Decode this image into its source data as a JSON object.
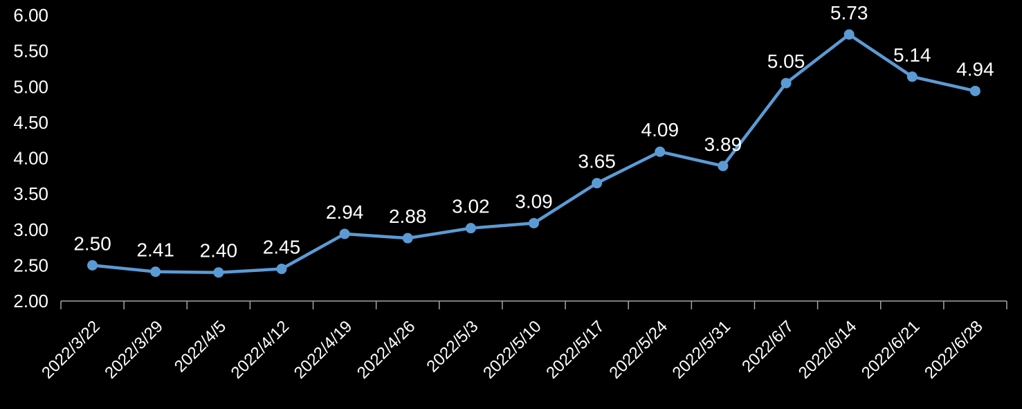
{
  "chart_data": {
    "type": "line",
    "title": "",
    "xlabel": "",
    "ylabel": "",
    "categories": [
      "2022/3/22",
      "2022/3/29",
      "2022/4/5",
      "2022/4/12",
      "2022/4/19",
      "2022/4/26",
      "2022/5/3",
      "2022/5/10",
      "2022/5/17",
      "2022/5/24",
      "2022/5/31",
      "2022/6/7",
      "2022/6/14",
      "2022/6/21",
      "2022/6/28"
    ],
    "values": [
      2.5,
      2.41,
      2.4,
      2.45,
      2.94,
      2.88,
      3.02,
      3.09,
      3.65,
      4.09,
      3.89,
      5.05,
      5.73,
      5.14,
      4.94
    ],
    "value_labels": [
      "2.50",
      "2.41",
      "2.40",
      "2.45",
      "2.94",
      "2.88",
      "3.02",
      "3.09",
      "3.65",
      "4.09",
      "3.89",
      "5.05",
      "5.73",
      "5.14",
      "4.94"
    ],
    "ylim": [
      2.0,
      6.0
    ],
    "ytick_step": 0.5,
    "ytick_labels": [
      "2.00",
      "2.50",
      "3.00",
      "3.50",
      "4.00",
      "4.50",
      "5.00",
      "5.50",
      "6.00"
    ],
    "grid": "off",
    "legend": "none",
    "series_color": "#5b9bd5",
    "label_color": "#ffffff",
    "axis_color": "#a6a6a6",
    "background_color": "#000000",
    "data_labels_shown": true,
    "x_label_rotation_deg": -45
  }
}
